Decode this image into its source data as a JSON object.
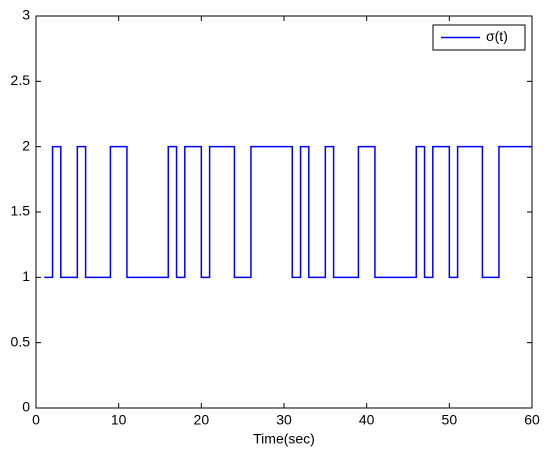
{
  "chart_data": {
    "type": "line",
    "x_label": "Time(sec)",
    "x": [
      1,
      2,
      2,
      3,
      3,
      5,
      5,
      6,
      6,
      9,
      9,
      11,
      11,
      16,
      16,
      17,
      17,
      18,
      18,
      20,
      20,
      21,
      21,
      24,
      24,
      26,
      26,
      31,
      31,
      32,
      32,
      33,
      33,
      35,
      35,
      36,
      36,
      39,
      39,
      41,
      41,
      46,
      46,
      47,
      47,
      48,
      48,
      50,
      50,
      51,
      51,
      54,
      54,
      56,
      56,
      60
    ],
    "series": [
      {
        "name": "σ(t)",
        "color": "#0000ff",
        "values": [
          1,
          1,
          2,
          2,
          1,
          1,
          2,
          2,
          1,
          1,
          2,
          2,
          1,
          1,
          2,
          2,
          1,
          1,
          2,
          2,
          1,
          1,
          2,
          2,
          1,
          1,
          2,
          2,
          1,
          1,
          2,
          2,
          1,
          1,
          2,
          2,
          1,
          1,
          2,
          2,
          1,
          1,
          2,
          2,
          1,
          1,
          2,
          2,
          1,
          1,
          2,
          2,
          1,
          1,
          2,
          2
        ]
      }
    ],
    "xlim": [
      0,
      60
    ],
    "xticks": [
      0,
      10,
      20,
      30,
      40,
      50,
      60
    ],
    "ylim": [
      0,
      3
    ],
    "yticks": [
      0,
      0.5,
      1,
      1.5,
      2,
      2.5,
      3
    ],
    "legend": "northeast",
    "grid": false
  }
}
